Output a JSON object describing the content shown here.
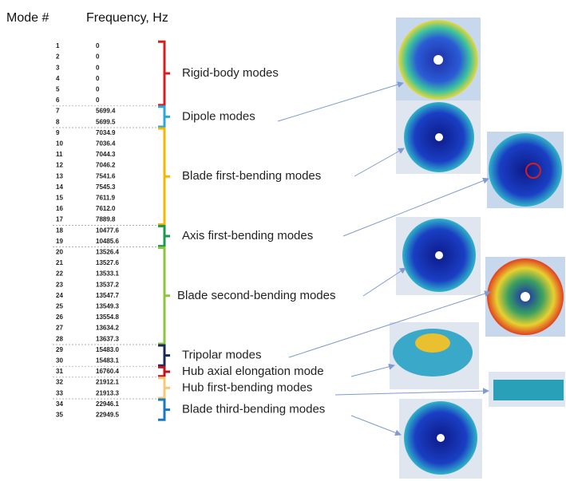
{
  "header": {
    "mode": "Mode #",
    "frequency": "Frequency, Hz"
  },
  "groups": [
    {
      "label": "Rigid-body modes",
      "rows": [
        [
          "1",
          "0"
        ],
        [
          "2",
          "0"
        ],
        [
          "3",
          "0"
        ],
        [
          "4",
          "0"
        ],
        [
          "5",
          "0"
        ],
        [
          "6",
          "0"
        ]
      ]
    },
    {
      "label": "Dipole modes",
      "rows": [
        [
          "7",
          "5699.4"
        ],
        [
          "8",
          "5699.5"
        ]
      ]
    },
    {
      "label": "Blade first-bending modes",
      "rows": [
        [
          "9",
          "7034.9"
        ],
        [
          "10",
          "7036.4"
        ],
        [
          "11",
          "7044.3"
        ],
        [
          "12",
          "7046.2"
        ],
        [
          "13",
          "7541.6"
        ],
        [
          "14",
          "7545.3"
        ],
        [
          "15",
          "7611.9"
        ],
        [
          "16",
          "7612.0"
        ],
        [
          "17",
          "7889.8"
        ]
      ]
    },
    {
      "label": "Axis first-bending modes",
      "rows": [
        [
          "18",
          "10477.6"
        ],
        [
          "19",
          "10485.6"
        ]
      ]
    },
    {
      "label": "Blade second-bending modes",
      "rows": [
        [
          "20",
          "13526.4"
        ],
        [
          "21",
          "13527.6"
        ],
        [
          "22",
          "13533.1"
        ],
        [
          "23",
          "13537.2"
        ],
        [
          "24",
          "13547.7"
        ],
        [
          "25",
          "13549.3"
        ],
        [
          "26",
          "13554.8"
        ],
        [
          "27",
          "13634.2"
        ],
        [
          "28",
          "13637.3"
        ]
      ]
    },
    {
      "label": "Tripolar modes",
      "rows": [
        [
          "29",
          "15483.0"
        ],
        [
          "30",
          "15483.1"
        ]
      ]
    },
    {
      "label": "Hub axial elongation mode",
      "rows": [
        [
          "31",
          "16760.4"
        ]
      ]
    },
    {
      "label": "Hub first-bending modes",
      "rows": [
        [
          "32",
          "21912.1"
        ],
        [
          "33",
          "21913.3"
        ]
      ]
    },
    {
      "label": "Blade third-bending modes",
      "rows": [
        [
          "34",
          "22946.1"
        ],
        [
          "35",
          "22949.5"
        ]
      ]
    }
  ]
}
